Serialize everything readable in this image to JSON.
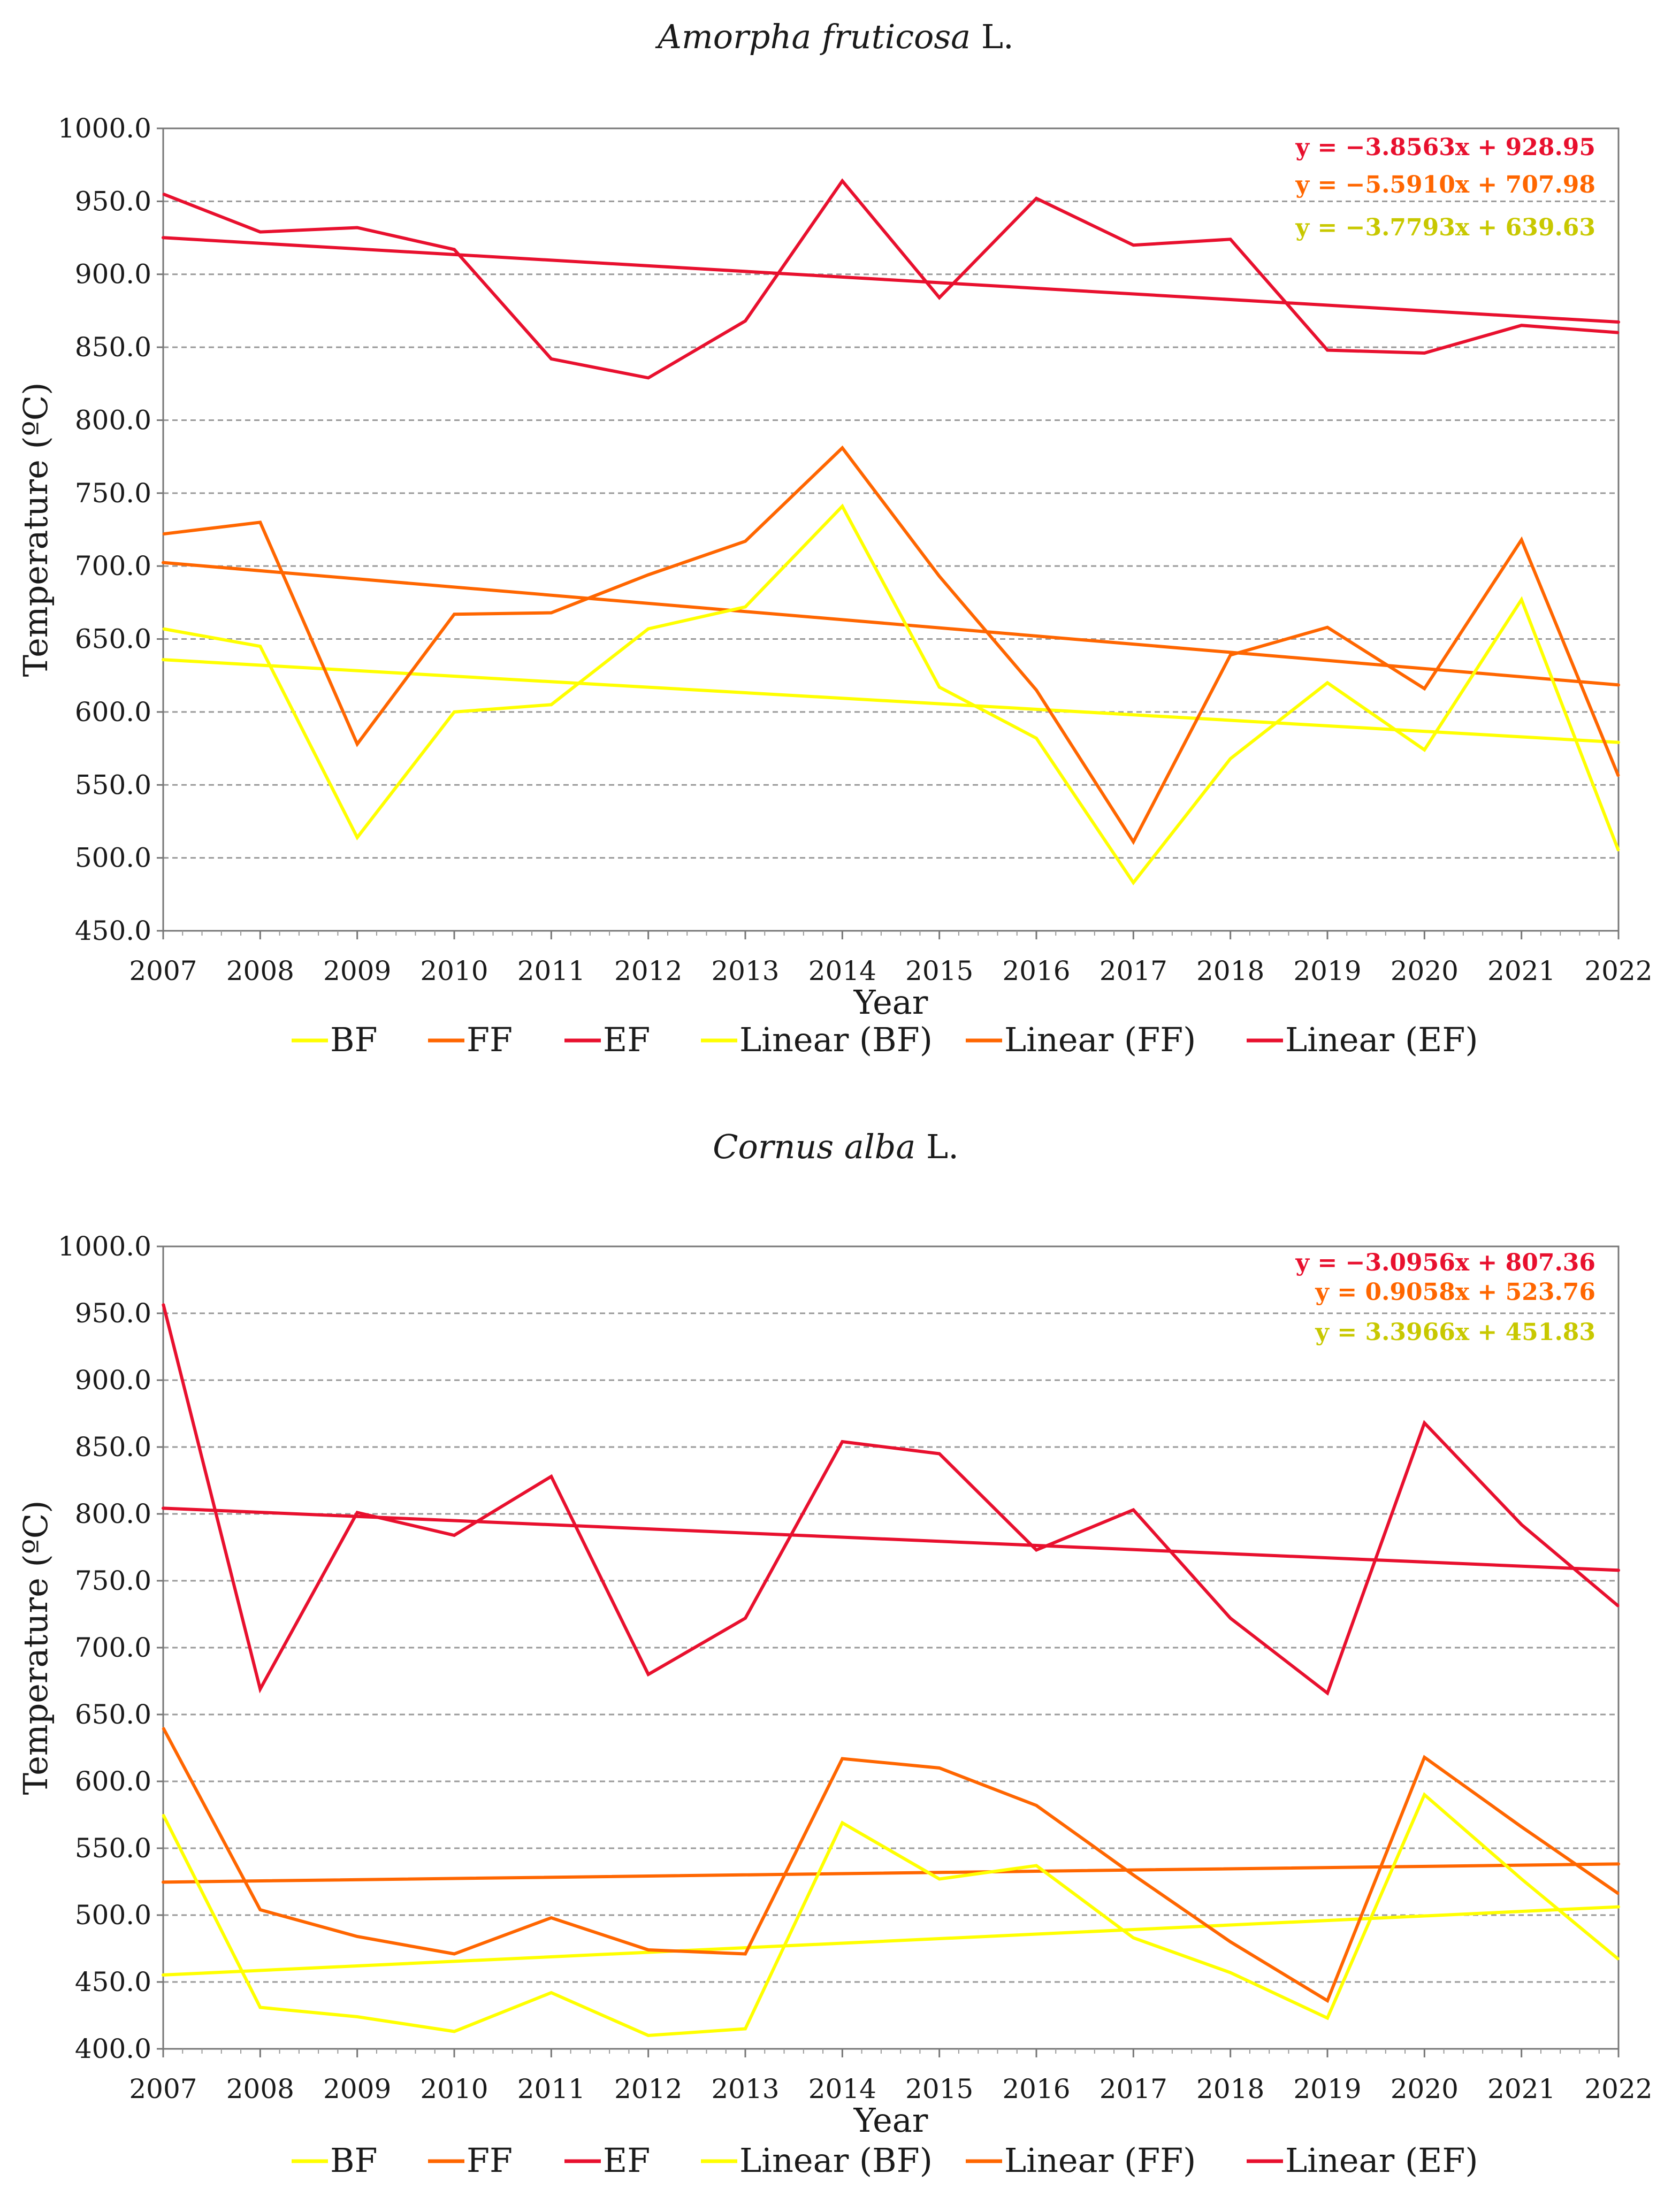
{
  "colors": {
    "BF": "#ffff00",
    "FF": "#ff6600",
    "EF": "#e8102e",
    "eq_BF": "#c8c800",
    "eq_FF": "#ff6600",
    "eq_EF": "#e8102e"
  },
  "chart_data": [
    {
      "type": "line",
      "title_species": "Amorpha fruticosa",
      "title_suffix": " L.",
      "xlabel": "Year",
      "ylabel": "Temperature (ºC)",
      "ylim": [
        450,
        1000
      ],
      "yticks": [
        "450.0",
        "500.0",
        "550.0",
        "600.0",
        "650.0",
        "700.0",
        "750.0",
        "800.0",
        "850.0",
        "900.0",
        "950.0",
        "1000.0"
      ],
      "grid": true,
      "categories": [
        "2007",
        "2008",
        "2009",
        "2010",
        "2011",
        "2012",
        "2013",
        "2014",
        "2015",
        "2016",
        "2017",
        "2018",
        "2019",
        "2020",
        "2021",
        "2022"
      ],
      "series": [
        {
          "name": "BF",
          "key": "BF",
          "values": [
            657,
            645,
            514,
            600,
            605,
            657,
            672,
            741,
            617,
            582,
            483,
            568,
            620,
            574,
            677,
            505
          ]
        },
        {
          "name": "FF",
          "key": "FF",
          "values": [
            722,
            730,
            578,
            667,
            668,
            694,
            717,
            781,
            693,
            615,
            511,
            639,
            658,
            616,
            718,
            556
          ]
        },
        {
          "name": "EF",
          "key": "EF",
          "values": [
            955,
            929,
            932,
            917,
            842,
            829,
            868,
            964,
            884,
            952,
            920,
            924,
            848,
            846,
            865,
            860
          ]
        }
      ],
      "trendlines": [
        {
          "name": "Linear (BF)",
          "key": "BF",
          "slope": -3.7793,
          "intercept": 639.63
        },
        {
          "name": "Linear (FF)",
          "key": "FF",
          "slope": -5.591,
          "intercept": 707.98
        },
        {
          "name": "Linear (EF)",
          "key": "EF",
          "slope": -3.8563,
          "intercept": 928.95
        }
      ],
      "equations": [
        {
          "text": "y = −3.8563x + 928.95",
          "key": "eq_EF"
        },
        {
          "text": "y = −5.5910x + 707.98",
          "key": "eq_FF"
        },
        {
          "text": "y = −3.7793x + 639.63",
          "key": "eq_BF"
        }
      ],
      "legend": [
        "BF",
        "FF",
        "EF",
        "Linear (BF)",
        "Linear (FF)",
        "Linear (EF)"
      ]
    },
    {
      "type": "line",
      "title_species": "Cornus alba",
      "title_suffix": " L.",
      "xlabel": "Year",
      "ylabel": "Temperature (ºC)",
      "ylim": [
        400,
        1000
      ],
      "yticks": [
        "400.0",
        "450.0",
        "500.0",
        "550.0",
        "600.0",
        "650.0",
        "700.0",
        "750.0",
        "800.0",
        "850.0",
        "900.0",
        "950.0",
        "1000.0"
      ],
      "grid": true,
      "categories": [
        "2007",
        "2008",
        "2009",
        "2010",
        "2011",
        "2012",
        "2013",
        "2014",
        "2015",
        "2016",
        "2017",
        "2018",
        "2019",
        "2020",
        "2021",
        "2022"
      ],
      "series": [
        {
          "name": "BF",
          "key": "BF",
          "values": [
            575,
            431,
            424,
            413,
            442,
            410,
            415,
            569,
            527,
            537,
            483,
            457,
            423,
            590,
            527,
            467
          ]
        },
        {
          "name": "FF",
          "key": "FF",
          "values": [
            640,
            504,
            484,
            471,
            498,
            474,
            471,
            617,
            610,
            582,
            530,
            480,
            436,
            618,
            566,
            516
          ]
        },
        {
          "name": "EF",
          "key": "EF",
          "values": [
            957,
            669,
            801,
            784,
            828,
            680,
            722,
            854,
            845,
            773,
            803,
            722,
            666,
            868,
            792,
            731
          ]
        }
      ],
      "trendlines": [
        {
          "name": "Linear (BF)",
          "key": "BF",
          "slope": 3.3966,
          "intercept": 451.83
        },
        {
          "name": "Linear (FF)",
          "key": "FF",
          "slope": 0.9058,
          "intercept": 523.76
        },
        {
          "name": "Linear (EF)",
          "key": "EF",
          "slope": -3.0956,
          "intercept": 807.36
        }
      ],
      "equations": [
        {
          "text": "y = −3.0956x + 807.36",
          "key": "eq_EF"
        },
        {
          "text": "y = 0.9058x + 523.76",
          "key": "eq_FF"
        },
        {
          "text": "y = 3.3966x + 451.83",
          "key": "eq_BF"
        }
      ],
      "legend": [
        "BF",
        "FF",
        "EF",
        "Linear (BF)",
        "Linear (FF)",
        "Linear (EF)"
      ]
    }
  ]
}
